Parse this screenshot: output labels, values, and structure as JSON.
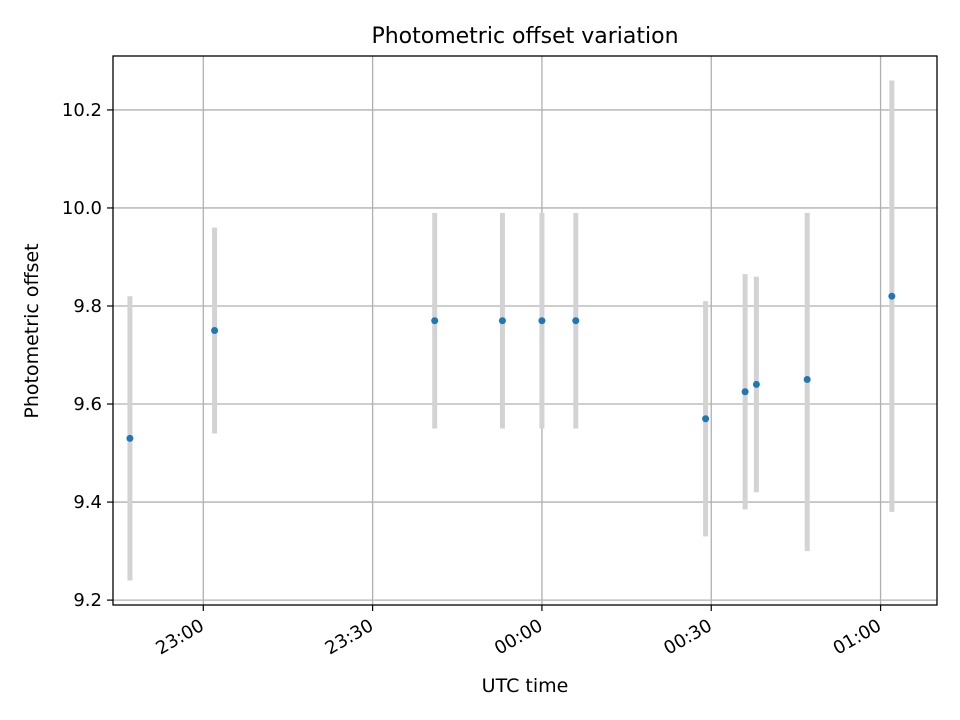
{
  "chart_data": {
    "type": "scatter",
    "title": "Photometric offset variation",
    "xlabel": "UTC time",
    "ylabel": "Photometric offset",
    "grid": true,
    "colors": {
      "point": "#1f77b4",
      "errorbar": "#d3d3d3",
      "grid": "#b0b0b0"
    },
    "x_ticks": [
      "23:00",
      "23:30",
      "00:00",
      "00:30",
      "01:00"
    ],
    "y_ticks": [
      "9.2",
      "9.4",
      "9.6",
      "9.8",
      "10.0",
      "10.2"
    ],
    "xlim": [
      "22:44",
      "01:10"
    ],
    "ylim": [
      9.19,
      10.31
    ],
    "points": [
      {
        "x": "22:47",
        "y": 9.53,
        "ymin": 9.24,
        "ymax": 9.82
      },
      {
        "x": "23:02",
        "y": 9.75,
        "ymin": 9.54,
        "ymax": 9.96
      },
      {
        "x": "23:41",
        "y": 9.77,
        "ymin": 9.55,
        "ymax": 9.99
      },
      {
        "x": "23:53",
        "y": 9.77,
        "ymin": 9.55,
        "ymax": 9.99
      },
      {
        "x": "00:00",
        "y": 9.77,
        "ymin": 9.55,
        "ymax": 9.99
      },
      {
        "x": "00:06",
        "y": 9.77,
        "ymin": 9.55,
        "ymax": 9.99
      },
      {
        "x": "00:29",
        "y": 9.57,
        "ymin": 9.33,
        "ymax": 9.81
      },
      {
        "x": "00:36",
        "y": 9.625,
        "ymin": 9.385,
        "ymax": 9.865
      },
      {
        "x": "00:38",
        "y": 9.64,
        "ymin": 9.42,
        "ymax": 9.86
      },
      {
        "x": "00:47",
        "y": 9.65,
        "ymin": 9.3,
        "ymax": 9.99
      },
      {
        "x": "01:02",
        "y": 9.82,
        "ymin": 9.38,
        "ymax": 10.26
      }
    ]
  }
}
